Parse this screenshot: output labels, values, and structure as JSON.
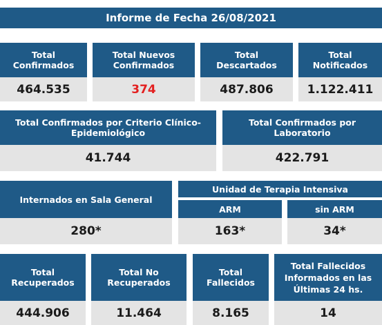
{
  "title": "Informe de Fecha 26/08/2021",
  "row1": [
    {
      "label": "Total\nConfirmados",
      "value": "464.535",
      "color": "#1a1a1a"
    },
    {
      "label": "Total Nuevos\nConfirmados",
      "value": "374",
      "color": "#e32020"
    },
    {
      "label": "Total\nDescartados",
      "value": "487.806",
      "color": "#1a1a1a"
    },
    {
      "label": "Total\nNotificados",
      "value": "1.122.411",
      "color": "#1a1a1a"
    }
  ],
  "row2": [
    {
      "label": "Total Confirmados por Criterio Clínico-\nEpidemiológico",
      "value": "41.744"
    },
    {
      "label": "Total Confirmados por\nLaboratorio",
      "value": "422.791"
    }
  ],
  "row3": {
    "sala": {
      "label": "Internados en Sala General",
      "value": "280*"
    },
    "uti": {
      "label": "Unidad de Terapia Intensiva",
      "arm": {
        "label": "ARM",
        "value": "163*"
      },
      "sin_arm": {
        "label": "sin ARM",
        "value": "34*"
      }
    }
  },
  "row4": [
    {
      "label": "Total\nRecuperados",
      "value": "444.906"
    },
    {
      "label": "Total No\nRecuperados",
      "value": "11.464"
    },
    {
      "label": "Total\nFallecidos",
      "value": "8.165"
    },
    {
      "label": "Total Fallecidos\nInformados en las\nÚltimas 24 hs.",
      "value": "14"
    }
  ],
  "colors": {
    "header_bg": "#1f5a87",
    "value_bg": "#e4e4e4",
    "highlight": "#e32020"
  }
}
